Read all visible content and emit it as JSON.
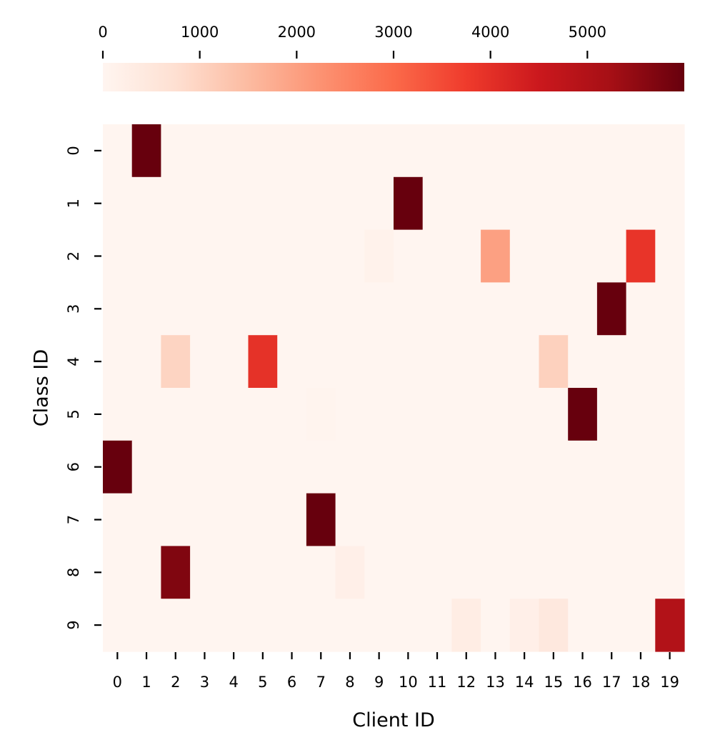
{
  "chart_data": {
    "type": "heatmap",
    "title": "",
    "xlabel": "Client ID",
    "ylabel": "Class ID",
    "x_categories": [
      "0",
      "1",
      "2",
      "3",
      "4",
      "5",
      "6",
      "7",
      "8",
      "9",
      "10",
      "11",
      "12",
      "13",
      "14",
      "15",
      "16",
      "17",
      "18",
      "19"
    ],
    "y_categories": [
      "0",
      "1",
      "2",
      "3",
      "4",
      "5",
      "6",
      "7",
      "8",
      "9"
    ],
    "values": [
      [
        0,
        6000,
        0,
        0,
        0,
        0,
        0,
        0,
        0,
        0,
        0,
        0,
        0,
        0,
        0,
        0,
        0,
        0,
        0,
        0
      ],
      [
        0,
        0,
        0,
        0,
        0,
        0,
        0,
        0,
        0,
        0,
        6000,
        0,
        0,
        0,
        0,
        0,
        0,
        0,
        0,
        0
      ],
      [
        0,
        0,
        0,
        0,
        0,
        0,
        0,
        0,
        0,
        120,
        0,
        0,
        0,
        2000,
        0,
        0,
        0,
        0,
        3900,
        0
      ],
      [
        0,
        0,
        0,
        0,
        0,
        0,
        0,
        0,
        0,
        0,
        0,
        0,
        0,
        0,
        0,
        0,
        0,
        6000,
        0,
        0
      ],
      [
        0,
        0,
        1000,
        0,
        0,
        3950,
        0,
        0,
        0,
        0,
        0,
        0,
        0,
        0,
        0,
        1050,
        0,
        0,
        0,
        0
      ],
      [
        0,
        0,
        0,
        0,
        0,
        0,
        0,
        50,
        0,
        0,
        0,
        0,
        0,
        0,
        0,
        0,
        6000,
        0,
        0,
        0
      ],
      [
        6000,
        0,
        0,
        0,
        0,
        0,
        0,
        0,
        0,
        0,
        0,
        0,
        0,
        0,
        0,
        0,
        0,
        0,
        0,
        0
      ],
      [
        0,
        0,
        0,
        0,
        0,
        0,
        0,
        6000,
        0,
        0,
        0,
        0,
        0,
        0,
        0,
        0,
        0,
        0,
        0,
        0
      ],
      [
        0,
        0,
        5700,
        0,
        0,
        0,
        0,
        0,
        200,
        0,
        0,
        0,
        0,
        0,
        0,
        0,
        0,
        0,
        0,
        0
      ],
      [
        0,
        0,
        0,
        0,
        0,
        0,
        0,
        0,
        0,
        0,
        0,
        0,
        300,
        0,
        200,
        450,
        0,
        0,
        0,
        5000
      ]
    ],
    "colorbar": {
      "colormap": "Reds",
      "range": [
        0,
        6000
      ],
      "ticks": [
        0,
        1000,
        2000,
        3000,
        4000,
        5000
      ],
      "tick_labels": [
        "0",
        "1000",
        "2000",
        "3000",
        "4000",
        "5000"
      ],
      "position": "top"
    },
    "colors": [
      "#fff5f0",
      "#fee0d2",
      "#fcbba1",
      "#fc9272",
      "#fb6a4a",
      "#ef3b2c",
      "#cb181d",
      "#a50f15",
      "#67000d"
    ]
  }
}
